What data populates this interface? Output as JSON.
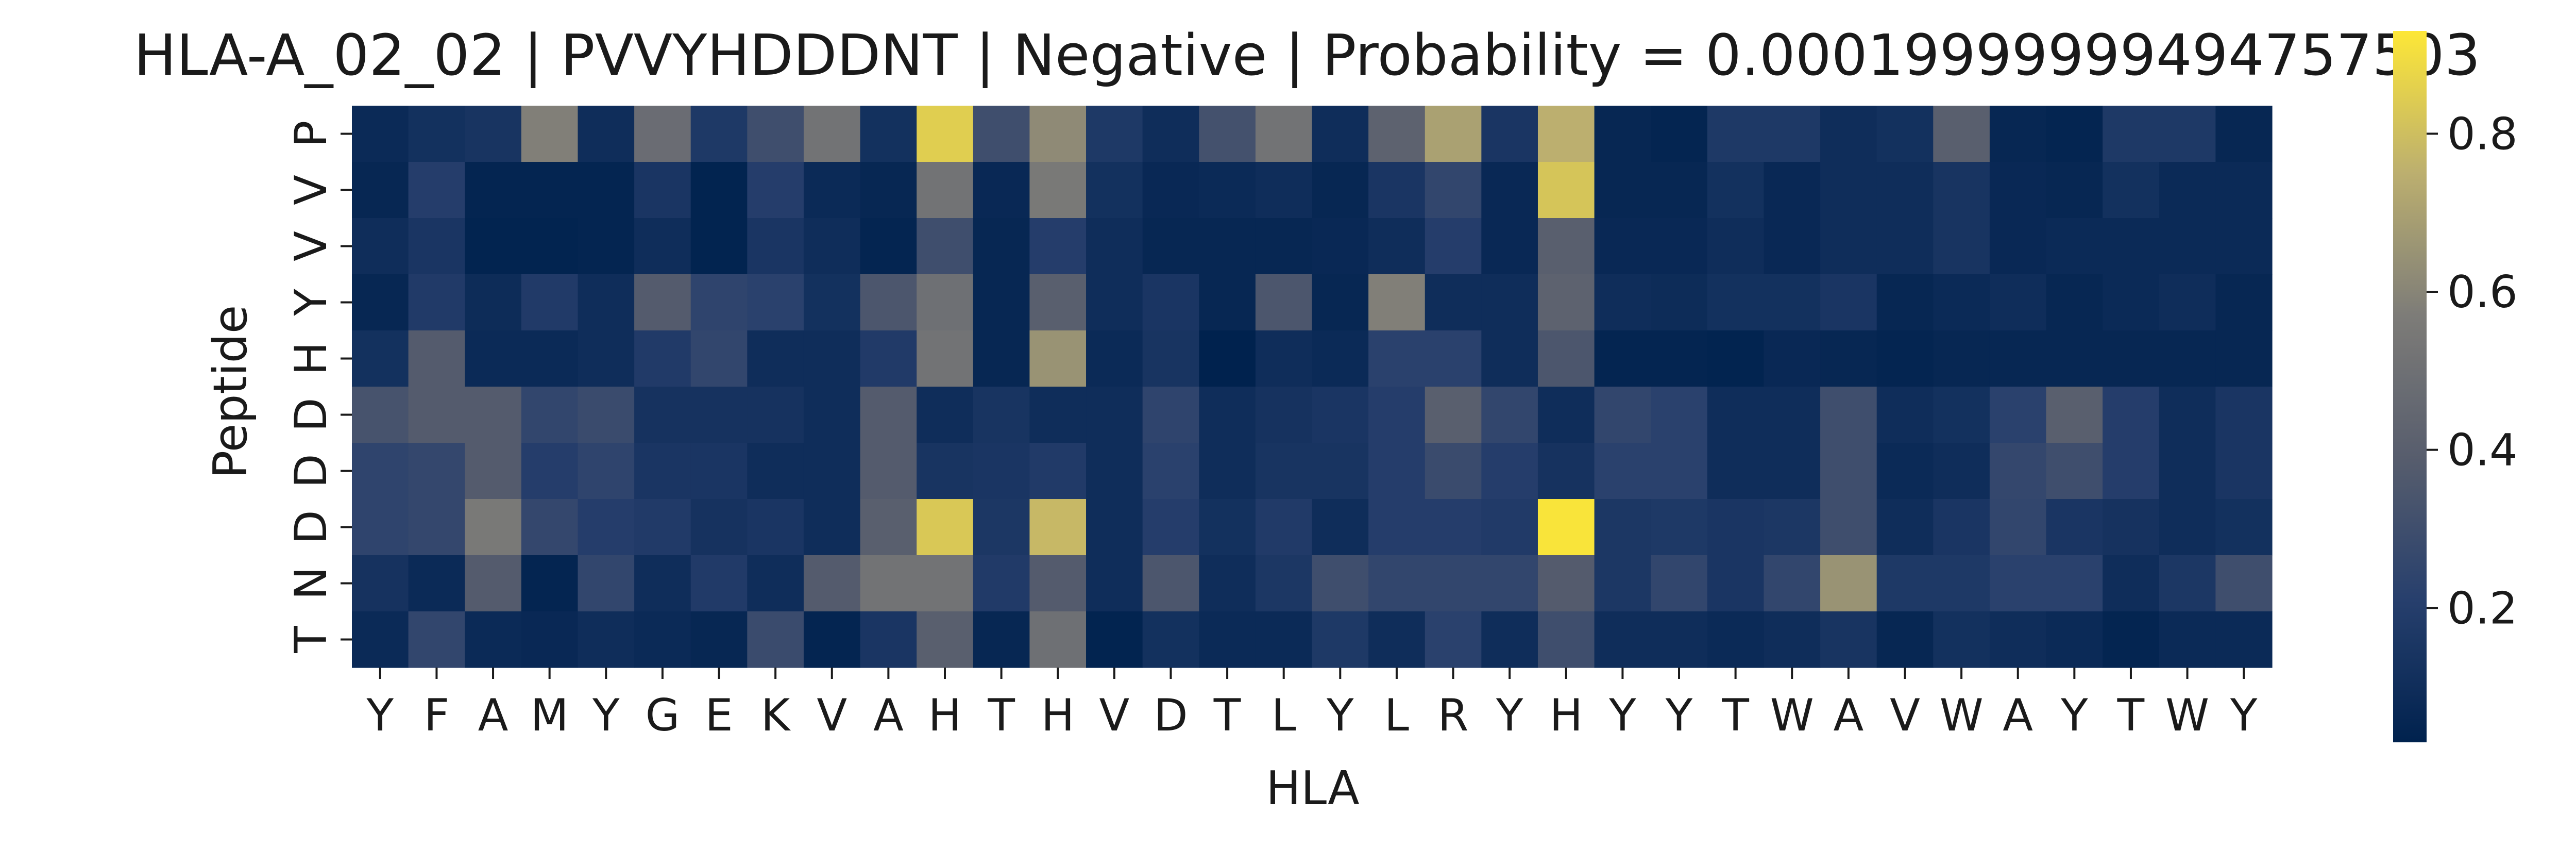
{
  "chart_data": {
    "type": "heatmap",
    "title": "HLA-A_02_02 | PVVYHDDDNT | Negative | Probability = 0.00019999999494757503",
    "xlabel": "HLA",
    "ylabel": "Peptide",
    "colormap": "cividis",
    "x_categories": [
      "Y",
      "F",
      "A",
      "M",
      "Y",
      "G",
      "E",
      "K",
      "V",
      "A",
      "H",
      "T",
      "H",
      "V",
      "D",
      "T",
      "L",
      "Y",
      "L",
      "R",
      "Y",
      "H",
      "Y",
      "Y",
      "T",
      "W",
      "A",
      "V",
      "W",
      "A",
      "Y",
      "T",
      "W",
      "Y"
    ],
    "y_categories": [
      "P",
      "V",
      "V",
      "Y",
      "H",
      "D",
      "D",
      "D",
      "N",
      "T"
    ],
    "values": [
      [
        0.08,
        0.12,
        0.14,
        0.58,
        0.1,
        0.48,
        0.17,
        0.3,
        0.52,
        0.12,
        0.85,
        0.3,
        0.62,
        0.17,
        0.1,
        0.32,
        0.52,
        0.1,
        0.42,
        0.7,
        0.15,
        0.75,
        0.06,
        0.05,
        0.17,
        0.17,
        0.1,
        0.12,
        0.4,
        0.06,
        0.05,
        0.17,
        0.17,
        0.06
      ],
      [
        0.06,
        0.2,
        0.05,
        0.05,
        0.05,
        0.15,
        0.04,
        0.2,
        0.08,
        0.06,
        0.52,
        0.07,
        0.55,
        0.12,
        0.07,
        0.08,
        0.1,
        0.06,
        0.15,
        0.25,
        0.07,
        0.82,
        0.06,
        0.06,
        0.12,
        0.07,
        0.1,
        0.1,
        0.14,
        0.07,
        0.06,
        0.12,
        0.08,
        0.08
      ],
      [
        0.1,
        0.15,
        0.04,
        0.04,
        0.05,
        0.1,
        0.04,
        0.15,
        0.1,
        0.05,
        0.3,
        0.06,
        0.2,
        0.1,
        0.06,
        0.06,
        0.06,
        0.07,
        0.1,
        0.2,
        0.07,
        0.4,
        0.07,
        0.07,
        0.1,
        0.07,
        0.1,
        0.1,
        0.14,
        0.07,
        0.08,
        0.08,
        0.08,
        0.08
      ],
      [
        0.06,
        0.18,
        0.09,
        0.18,
        0.1,
        0.38,
        0.24,
        0.22,
        0.12,
        0.35,
        0.5,
        0.06,
        0.4,
        0.1,
        0.15,
        0.06,
        0.35,
        0.06,
        0.58,
        0.1,
        0.1,
        0.42,
        0.1,
        0.09,
        0.12,
        0.12,
        0.15,
        0.06,
        0.08,
        0.1,
        0.06,
        0.08,
        0.1,
        0.06
      ],
      [
        0.12,
        0.38,
        0.08,
        0.08,
        0.1,
        0.18,
        0.25,
        0.1,
        0.1,
        0.18,
        0.52,
        0.06,
        0.65,
        0.08,
        0.14,
        0.03,
        0.1,
        0.08,
        0.22,
        0.22,
        0.1,
        0.35,
        0.05,
        0.05,
        0.04,
        0.07,
        0.06,
        0.05,
        0.06,
        0.06,
        0.06,
        0.06,
        0.06,
        0.06
      ],
      [
        0.33,
        0.38,
        0.38,
        0.25,
        0.28,
        0.13,
        0.13,
        0.13,
        0.1,
        0.38,
        0.1,
        0.14,
        0.1,
        0.1,
        0.24,
        0.1,
        0.13,
        0.15,
        0.2,
        0.4,
        0.25,
        0.1,
        0.25,
        0.22,
        0.1,
        0.1,
        0.3,
        0.1,
        0.12,
        0.22,
        0.4,
        0.2,
        0.1,
        0.15
      ],
      [
        0.24,
        0.26,
        0.38,
        0.2,
        0.24,
        0.15,
        0.15,
        0.1,
        0.1,
        0.38,
        0.14,
        0.15,
        0.18,
        0.1,
        0.22,
        0.1,
        0.14,
        0.14,
        0.2,
        0.28,
        0.2,
        0.13,
        0.22,
        0.22,
        0.1,
        0.1,
        0.3,
        0.08,
        0.1,
        0.26,
        0.3,
        0.2,
        0.1,
        0.15
      ],
      [
        0.24,
        0.26,
        0.55,
        0.26,
        0.2,
        0.18,
        0.13,
        0.15,
        0.1,
        0.4,
        0.83,
        0.16,
        0.78,
        0.1,
        0.2,
        0.12,
        0.18,
        0.1,
        0.2,
        0.2,
        0.18,
        0.92,
        0.16,
        0.17,
        0.15,
        0.16,
        0.3,
        0.1,
        0.15,
        0.25,
        0.15,
        0.13,
        0.1,
        0.12
      ],
      [
        0.13,
        0.08,
        0.38,
        0.05,
        0.25,
        0.1,
        0.18,
        0.1,
        0.38,
        0.52,
        0.52,
        0.18,
        0.38,
        0.1,
        0.35,
        0.1,
        0.16,
        0.3,
        0.25,
        0.25,
        0.25,
        0.38,
        0.16,
        0.25,
        0.15,
        0.25,
        0.65,
        0.17,
        0.17,
        0.22,
        0.22,
        0.1,
        0.16,
        0.3
      ],
      [
        0.08,
        0.25,
        0.08,
        0.07,
        0.1,
        0.08,
        0.06,
        0.28,
        0.05,
        0.15,
        0.4,
        0.06,
        0.5,
        0.04,
        0.12,
        0.08,
        0.08,
        0.17,
        0.1,
        0.22,
        0.1,
        0.3,
        0.1,
        0.1,
        0.08,
        0.1,
        0.14,
        0.06,
        0.12,
        0.1,
        0.08,
        0.05,
        0.08,
        0.08
      ]
    ],
    "color_range": [
      0.03,
      0.93
    ],
    "colorbar_ticks": [
      "0.2",
      "0.4",
      "0.6",
      "0.8"
    ],
    "colorbar_tick_values": [
      0.2,
      0.4,
      0.6,
      0.8
    ],
    "grid": false,
    "legend": "colorbar-right"
  }
}
